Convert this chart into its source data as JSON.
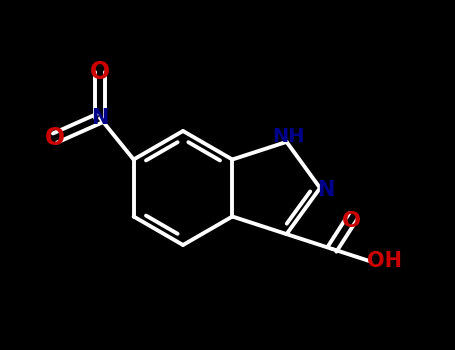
{
  "background_color": "#000000",
  "bond_color": "#FFFFFF",
  "nitrogen_color": "#00008B",
  "oxygen_color": "#CC0000",
  "line_width": 2.8,
  "figsize": [
    4.55,
    3.5
  ],
  "dpi": 100,
  "xlim": [
    0,
    455
  ],
  "ylim": [
    0,
    350
  ]
}
